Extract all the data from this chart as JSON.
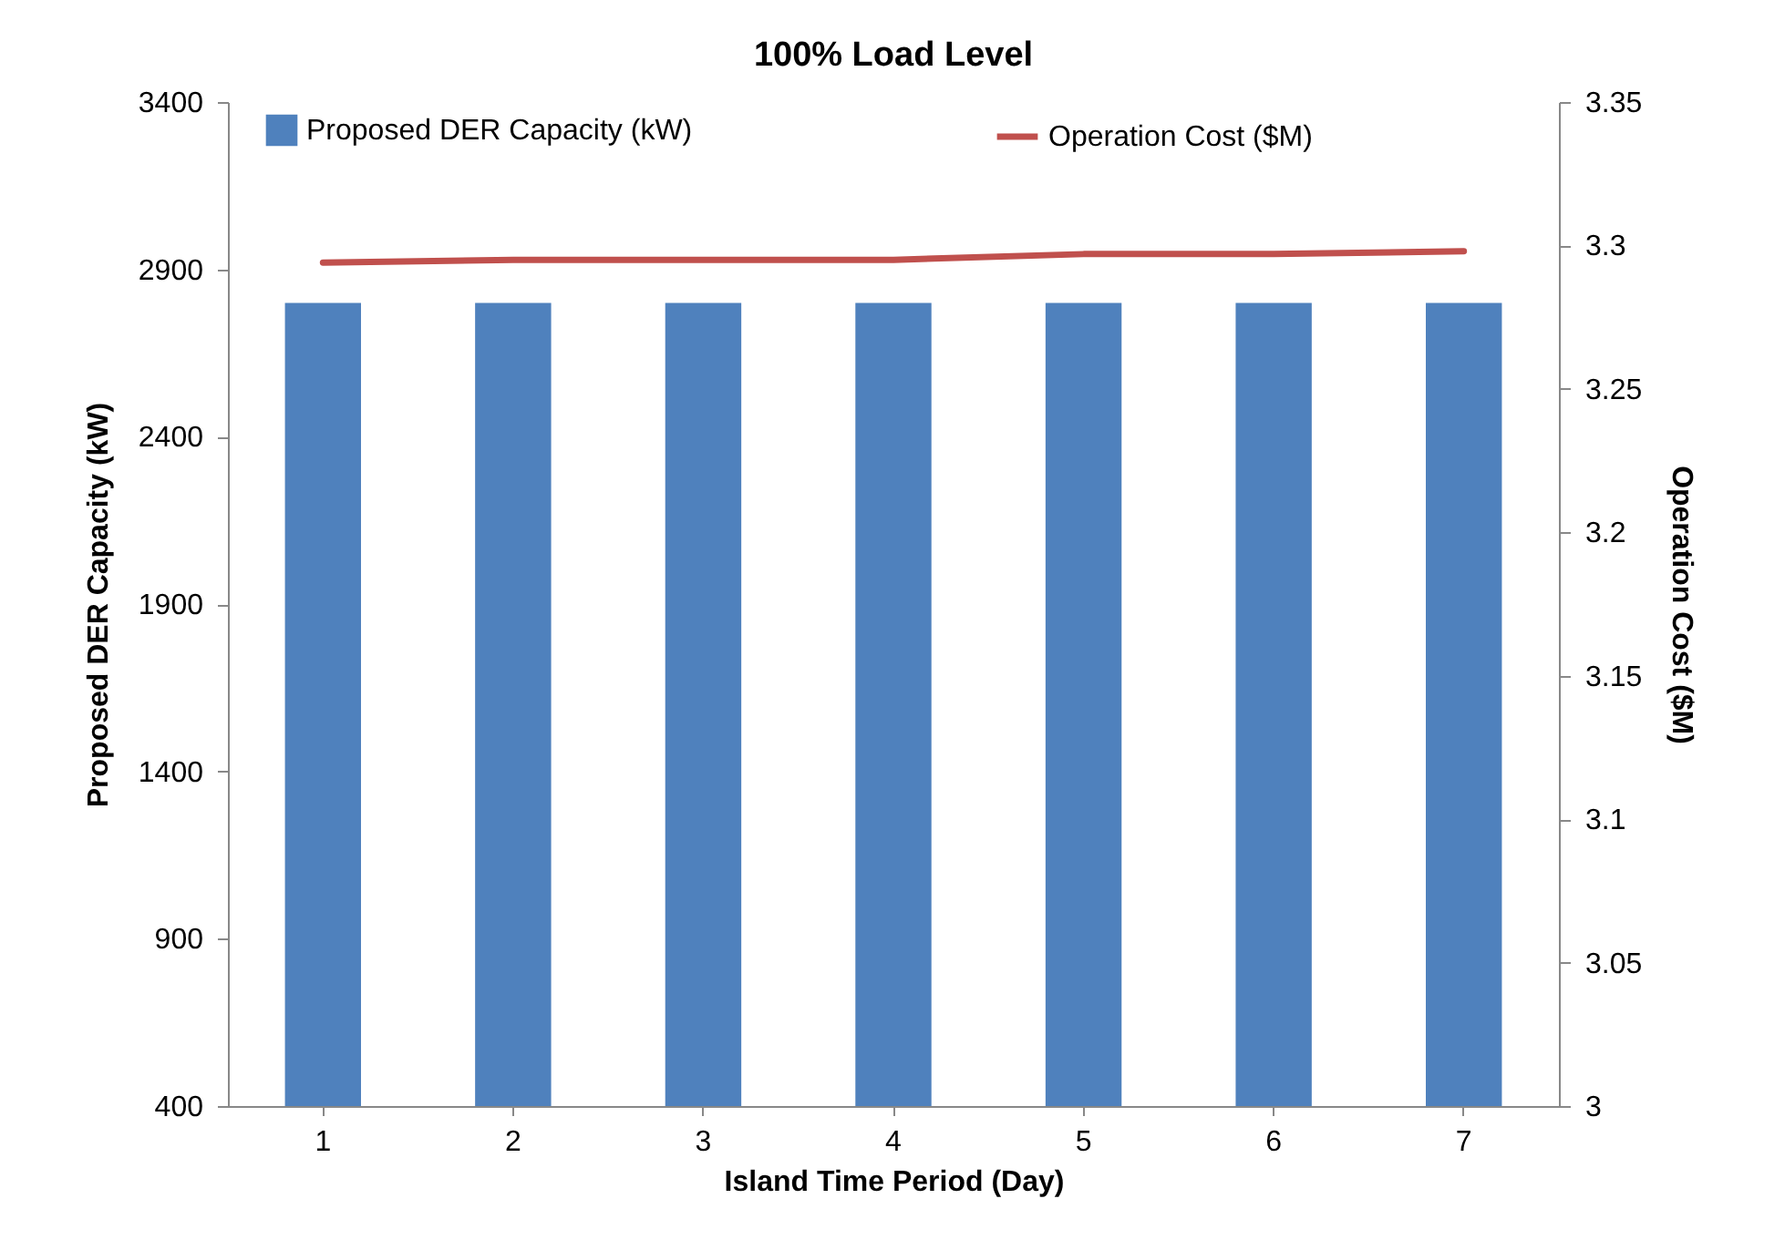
{
  "chart_data": {
    "type": "bar",
    "title": "100% Load Level",
    "xlabel": "Island Time Period (Day)",
    "ylabel": "Proposed DER Capacity (kW)",
    "y2label": "Operation Cost ($M)",
    "categories": [
      "1",
      "2",
      "3",
      "4",
      "5",
      "6",
      "7"
    ],
    "series": [
      {
        "name": "Proposed DER Capacity (kW)",
        "color": "#4f81bd",
        "values": [
          2800,
          2800,
          2800,
          2800,
          2800,
          2800,
          2800
        ]
      },
      {
        "name": "Operation Cost ($M)",
        "type": "line",
        "axis": "y2",
        "color": "#c0504d",
        "values": [
          3.294,
          3.295,
          3.295,
          3.295,
          3.297,
          3.297,
          3.298
        ]
      }
    ],
    "ylim": [
      400,
      3400
    ],
    "yticks": [
      400,
      900,
      1400,
      1900,
      2400,
      2900,
      3400
    ],
    "y2lim": [
      3,
      3.35
    ],
    "y2ticks": [
      3,
      3.05,
      3.1,
      3.15,
      3.2,
      3.25,
      3.3,
      3.35
    ],
    "legend": "top",
    "grid": false
  }
}
